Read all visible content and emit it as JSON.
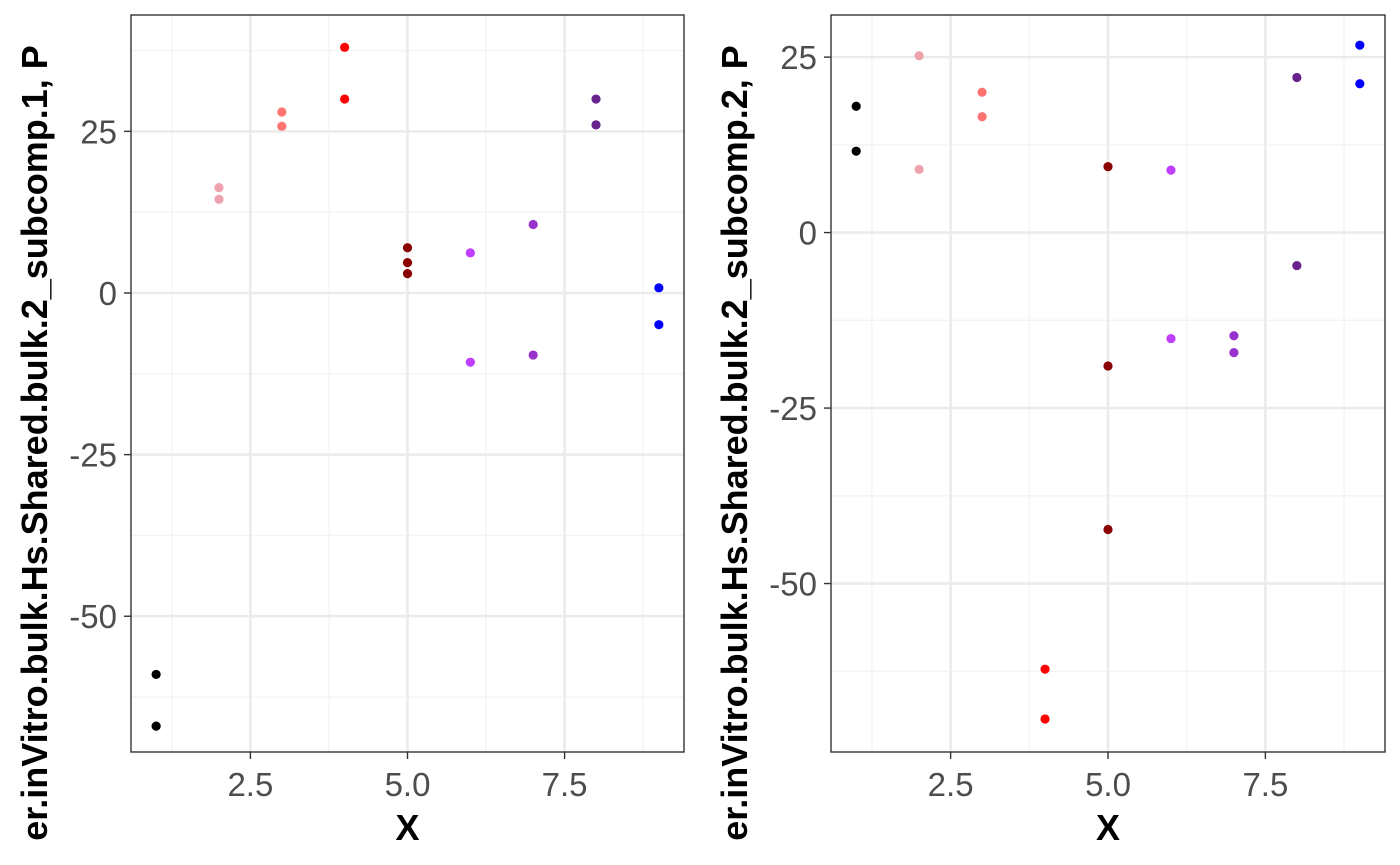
{
  "chart_data": [
    {
      "type": "scatter",
      "xlabel": "X",
      "ylabel": "er.inVitro.bulk.Hs.Shared.bulk.2_subcomp.1, P",
      "xlim": [
        0.6,
        9.4
      ],
      "ylim": [
        -71,
        43
      ],
      "x_ticks": [
        2.5,
        5.0,
        7.5
      ],
      "x_tick_labels": [
        "2.5",
        "5.0",
        "7.5"
      ],
      "y_ticks": [
        -50,
        -25,
        0,
        25
      ],
      "y_tick_labels": [
        "-50",
        "-25",
        "0",
        "25"
      ],
      "grid": true,
      "points": [
        {
          "x": 1,
          "y": -59.0,
          "color": "#000000"
        },
        {
          "x": 1,
          "y": -67.0,
          "color": "#000000"
        },
        {
          "x": 2,
          "y": 16.3,
          "color": "#eea2ad"
        },
        {
          "x": 2,
          "y": 14.5,
          "color": "#eea2ad"
        },
        {
          "x": 3,
          "y": 28.0,
          "color": "#ff7373"
        },
        {
          "x": 3,
          "y": 25.8,
          "color": "#ff7373"
        },
        {
          "x": 4,
          "y": 38.0,
          "color": "#ff0000"
        },
        {
          "x": 4,
          "y": 30.0,
          "color": "#ff0000"
        },
        {
          "x": 5,
          "y": 7.0,
          "color": "#8b0000"
        },
        {
          "x": 5,
          "y": 4.7,
          "color": "#8b0000"
        },
        {
          "x": 5,
          "y": 3.0,
          "color": "#8b0000"
        },
        {
          "x": 6,
          "y": 6.2,
          "color": "#bf3eff"
        },
        {
          "x": 6,
          "y": -10.7,
          "color": "#bf3eff"
        },
        {
          "x": 7,
          "y": 10.6,
          "color": "#9932cc"
        },
        {
          "x": 7,
          "y": -9.6,
          "color": "#9932cc"
        },
        {
          "x": 8,
          "y": 30.0,
          "color": "#68228b"
        },
        {
          "x": 8,
          "y": 26.0,
          "color": "#68228b"
        },
        {
          "x": 9,
          "y": 0.8,
          "color": "#0000ff"
        },
        {
          "x": 9,
          "y": -4.9,
          "color": "#0000ff"
        }
      ]
    },
    {
      "type": "scatter",
      "xlabel": "X",
      "ylabel": "er.inVitro.bulk.Hs.Shared.bulk.2_subcomp.2, P",
      "xlim": [
        0.6,
        9.4
      ],
      "ylim": [
        -74,
        31
      ],
      "x_ticks": [
        2.5,
        5.0,
        7.5
      ],
      "x_tick_labels": [
        "2.5",
        "5.0",
        "7.5"
      ],
      "y_ticks": [
        -50,
        -25,
        0,
        25
      ],
      "y_tick_labels": [
        "-50",
        "-25",
        "0",
        "25"
      ],
      "grid": true,
      "points": [
        {
          "x": 1,
          "y": 18.0,
          "color": "#000000"
        },
        {
          "x": 1,
          "y": 11.6,
          "color": "#000000"
        },
        {
          "x": 2,
          "y": 25.2,
          "color": "#eea2ad"
        },
        {
          "x": 2,
          "y": 9.0,
          "color": "#eea2ad"
        },
        {
          "x": 3,
          "y": 20.0,
          "color": "#ff7373"
        },
        {
          "x": 3,
          "y": 16.5,
          "color": "#ff7373"
        },
        {
          "x": 4,
          "y": -62.2,
          "color": "#ff0000"
        },
        {
          "x": 4,
          "y": -69.3,
          "color": "#ff0000"
        },
        {
          "x": 5,
          "y": 9.4,
          "color": "#8b0000"
        },
        {
          "x": 5,
          "y": -19.0,
          "color": "#8b0000"
        },
        {
          "x": 5,
          "y": -42.3,
          "color": "#8b0000"
        },
        {
          "x": 6,
          "y": 8.9,
          "color": "#bf3eff"
        },
        {
          "x": 6,
          "y": -15.1,
          "color": "#bf3eff"
        },
        {
          "x": 7,
          "y": -14.7,
          "color": "#9932cc"
        },
        {
          "x": 7,
          "y": -17.1,
          "color": "#9932cc"
        },
        {
          "x": 8,
          "y": 22.1,
          "color": "#68228b"
        },
        {
          "x": 8,
          "y": -4.7,
          "color": "#68228b"
        },
        {
          "x": 9,
          "y": 26.7,
          "color": "#0000ff"
        },
        {
          "x": 9,
          "y": 21.2,
          "color": "#0000ff"
        }
      ]
    }
  ]
}
